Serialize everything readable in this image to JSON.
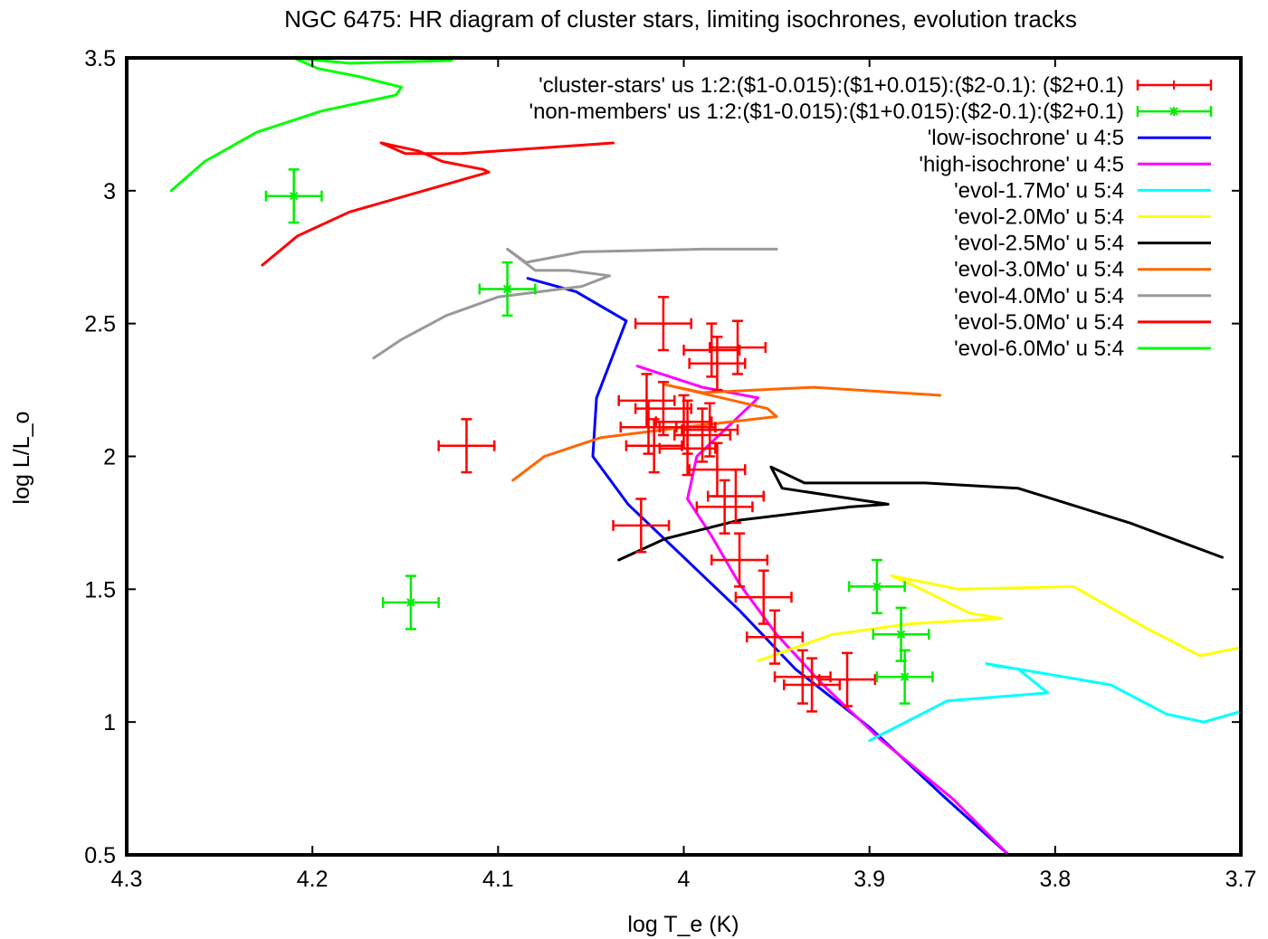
{
  "chart_data": {
    "type": "scatter",
    "title": "NGC 6475: HR diagram of cluster stars, limiting isochrones, evolution tracks",
    "xlabel": "log T_e (K)",
    "ylabel": "log L/L_o",
    "xlim": [
      4.3,
      3.7
    ],
    "ylim": [
      0.5,
      3.5
    ],
    "x_reversed": true,
    "xticks": [
      {
        "value": 4.3,
        "label": "4.3"
      },
      {
        "value": 4.2,
        "label": "4.2"
      },
      {
        "value": 4.1,
        "label": "4.1"
      },
      {
        "value": 4.0,
        "label": "4"
      },
      {
        "value": 3.9,
        "label": "3.9"
      },
      {
        "value": 3.8,
        "label": "3.8"
      },
      {
        "value": 3.7,
        "label": "3.7"
      }
    ],
    "yticks": [
      {
        "value": 0.5,
        "label": "0.5"
      },
      {
        "value": 1.0,
        "label": "1"
      },
      {
        "value": 1.5,
        "label": "1.5"
      },
      {
        "value": 2.0,
        "label": "2"
      },
      {
        "value": 2.5,
        "label": "2.5"
      },
      {
        "value": 3.0,
        "label": "3"
      },
      {
        "value": 3.5,
        "label": "3.5"
      }
    ],
    "grid": false,
    "legend_position": "top-right",
    "series": [
      {
        "name": "'cluster-stars' us 1:2:($1-0.015):($1+0.015):($2-0.1):   ($2+0.1)",
        "kind": "errorbars",
        "color": "#ff0000",
        "marker": "plus",
        "xerr": 0.015,
        "yerr": 0.1,
        "points": [
          [
            4.117,
            2.04
          ],
          [
            4.011,
            2.5
          ],
          [
            3.985,
            2.4
          ],
          [
            3.982,
            2.35
          ],
          [
            3.971,
            2.41
          ],
          [
            4.02,
            2.21
          ],
          [
            4.011,
            2.18
          ],
          [
            4.019,
            2.11
          ],
          [
            4.0,
            2.13
          ],
          [
            3.998,
            2.11
          ],
          [
            3.99,
            2.08
          ],
          [
            3.986,
            2.1
          ],
          [
            4.016,
            2.04
          ],
          [
            3.998,
            2.03
          ],
          [
            3.982,
            1.95
          ],
          [
            3.972,
            1.85
          ],
          [
            3.978,
            1.81
          ],
          [
            4.023,
            1.74
          ],
          [
            3.97,
            1.61
          ],
          [
            3.957,
            1.47
          ],
          [
            3.951,
            1.32
          ],
          [
            3.936,
            1.17
          ],
          [
            3.931,
            1.14
          ],
          [
            3.912,
            1.16
          ]
        ]
      },
      {
        "name": "'non-members' us 1:2:($1-0.015):($1+0.015):($2-0.1):($2+0.1)",
        "kind": "errorbars",
        "color": "#00ee00",
        "marker": "star",
        "xerr": 0.015,
        "yerr": 0.1,
        "points": [
          [
            4.21,
            2.98
          ],
          [
            4.095,
            2.63
          ],
          [
            4.147,
            1.45
          ],
          [
            3.896,
            1.51
          ],
          [
            3.883,
            1.33
          ],
          [
            3.881,
            1.17
          ]
        ]
      },
      {
        "name": "'low-isochrone' u 4:5",
        "kind": "line",
        "color": "#0000ff",
        "points": [
          [
            4.084,
            2.67
          ],
          [
            4.058,
            2.62
          ],
          [
            4.031,
            2.51
          ],
          [
            4.047,
            2.22
          ],
          [
            4.049,
            2.0
          ],
          [
            4.03,
            1.82
          ],
          [
            4.0,
            1.62
          ],
          [
            3.97,
            1.42
          ],
          [
            3.94,
            1.2
          ],
          [
            3.9,
            0.98
          ],
          [
            3.86,
            0.72
          ],
          [
            3.825,
            0.5
          ]
        ]
      },
      {
        "name": "'high-isochrone' u 4:5",
        "kind": "line",
        "color": "#ff00ff",
        "points": [
          [
            4.025,
            2.34
          ],
          [
            3.99,
            2.26
          ],
          [
            3.96,
            2.22
          ],
          [
            3.993,
            2.0
          ],
          [
            3.998,
            1.84
          ],
          [
            3.985,
            1.7
          ],
          [
            3.97,
            1.52
          ],
          [
            3.95,
            1.33
          ],
          [
            3.925,
            1.14
          ],
          [
            3.895,
            0.94
          ],
          [
            3.855,
            0.71
          ],
          [
            3.825,
            0.5
          ]
        ]
      },
      {
        "name": "'evol-1.7Mo' u 5:4",
        "kind": "line",
        "color": "#00ffff",
        "points": [
          [
            3.9,
            0.93
          ],
          [
            3.858,
            1.08
          ],
          [
            3.804,
            1.11
          ],
          [
            3.82,
            1.2
          ],
          [
            3.831,
            1.21
          ],
          [
            3.837,
            1.22
          ],
          [
            3.77,
            1.14
          ],
          [
            3.74,
            1.03
          ],
          [
            3.72,
            1.0
          ],
          [
            3.7,
            1.04
          ]
        ]
      },
      {
        "name": "'evol-2.0Mo' u 5:4",
        "kind": "line",
        "color": "#ffff00",
        "points": [
          [
            3.96,
            1.23
          ],
          [
            3.92,
            1.33
          ],
          [
            3.878,
            1.37
          ],
          [
            3.829,
            1.39
          ],
          [
            3.846,
            1.41
          ],
          [
            3.872,
            1.5
          ],
          [
            3.888,
            1.55
          ],
          [
            3.852,
            1.5
          ],
          [
            3.79,
            1.51
          ],
          [
            3.75,
            1.35
          ],
          [
            3.722,
            1.25
          ],
          [
            3.7,
            1.28
          ]
        ]
      },
      {
        "name": "'evol-2.5Mo' u 5:4",
        "kind": "line",
        "color": "#000000",
        "points": [
          [
            4.035,
            1.61
          ],
          [
            4.01,
            1.69
          ],
          [
            3.97,
            1.76
          ],
          [
            3.91,
            1.81
          ],
          [
            3.89,
            1.82
          ],
          [
            3.947,
            1.88
          ],
          [
            3.953,
            1.96
          ],
          [
            3.935,
            1.9
          ],
          [
            3.87,
            1.9
          ],
          [
            3.82,
            1.88
          ],
          [
            3.76,
            1.75
          ],
          [
            3.71,
            1.62
          ]
        ]
      },
      {
        "name": "'evol-3.0Mo' u 5:4",
        "kind": "line",
        "color": "#ff6600",
        "points": [
          [
            4.092,
            1.91
          ],
          [
            4.075,
            2.0
          ],
          [
            4.045,
            2.07
          ],
          [
            4.0,
            2.11
          ],
          [
            3.95,
            2.15
          ],
          [
            3.955,
            2.18
          ],
          [
            4.01,
            2.27
          ],
          [
            3.99,
            2.24
          ],
          [
            3.93,
            2.26
          ],
          [
            3.862,
            2.23
          ]
        ]
      },
      {
        "name": "'evol-4.0Mo' u 5:4",
        "kind": "line",
        "color": "#999999",
        "points": [
          [
            4.167,
            2.37
          ],
          [
            4.152,
            2.44
          ],
          [
            4.128,
            2.53
          ],
          [
            4.1,
            2.6
          ],
          [
            4.055,
            2.64
          ],
          [
            4.04,
            2.68
          ],
          [
            4.062,
            2.7
          ],
          [
            4.08,
            2.7
          ],
          [
            4.095,
            2.78
          ],
          [
            4.085,
            2.73
          ],
          [
            4.055,
            2.77
          ],
          [
            3.99,
            2.78
          ],
          [
            3.95,
            2.78
          ]
        ]
      },
      {
        "name": "'evol-5.0Mo' u 5:4",
        "kind": "line",
        "color": "#ff0000",
        "points": [
          [
            4.227,
            2.72
          ],
          [
            4.208,
            2.83
          ],
          [
            4.18,
            2.92
          ],
          [
            4.14,
            3.0
          ],
          [
            4.105,
            3.07
          ],
          [
            4.108,
            3.08
          ],
          [
            4.13,
            3.11
          ],
          [
            4.143,
            3.15
          ],
          [
            4.163,
            3.18
          ],
          [
            4.15,
            3.14
          ],
          [
            4.12,
            3.14
          ],
          [
            4.038,
            3.18
          ]
        ]
      },
      {
        "name": "'evol-6.0Mo' u 5:4",
        "kind": "line",
        "color": "#00ff00",
        "points": [
          [
            4.276,
            3.0
          ],
          [
            4.258,
            3.11
          ],
          [
            4.23,
            3.22
          ],
          [
            4.195,
            3.3
          ],
          [
            4.155,
            3.36
          ],
          [
            4.152,
            3.39
          ],
          [
            4.175,
            3.43
          ],
          [
            4.197,
            3.46
          ],
          [
            4.21,
            3.5
          ],
          [
            4.18,
            3.48
          ],
          [
            4.125,
            3.49
          ]
        ]
      }
    ]
  }
}
